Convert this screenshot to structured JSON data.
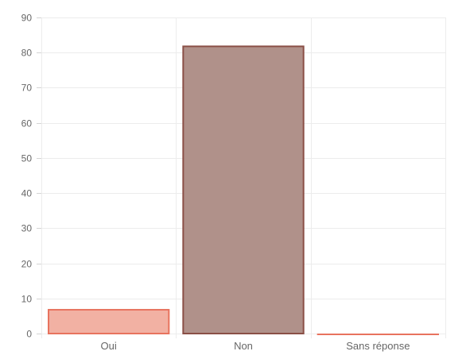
{
  "chart_data": {
    "type": "bar",
    "title": "",
    "xlabel": "",
    "ylabel": "",
    "categories": [
      "Oui",
      "Non",
      "Sans réponse"
    ],
    "values": [
      7,
      82,
      0
    ],
    "ylim": [
      0,
      90
    ],
    "yticks": [
      0,
      10,
      20,
      30,
      40,
      50,
      60,
      70,
      80,
      90
    ],
    "grid": true,
    "legend": "none",
    "colors": {
      "fills": [
        "#f2b1a3",
        "#b0918a",
        "#f2b1a3"
      ],
      "borders": [
        "#e8735e",
        "#8a4f46",
        "#e8735e"
      ],
      "grid": "#ececec",
      "text": "#666666"
    }
  }
}
